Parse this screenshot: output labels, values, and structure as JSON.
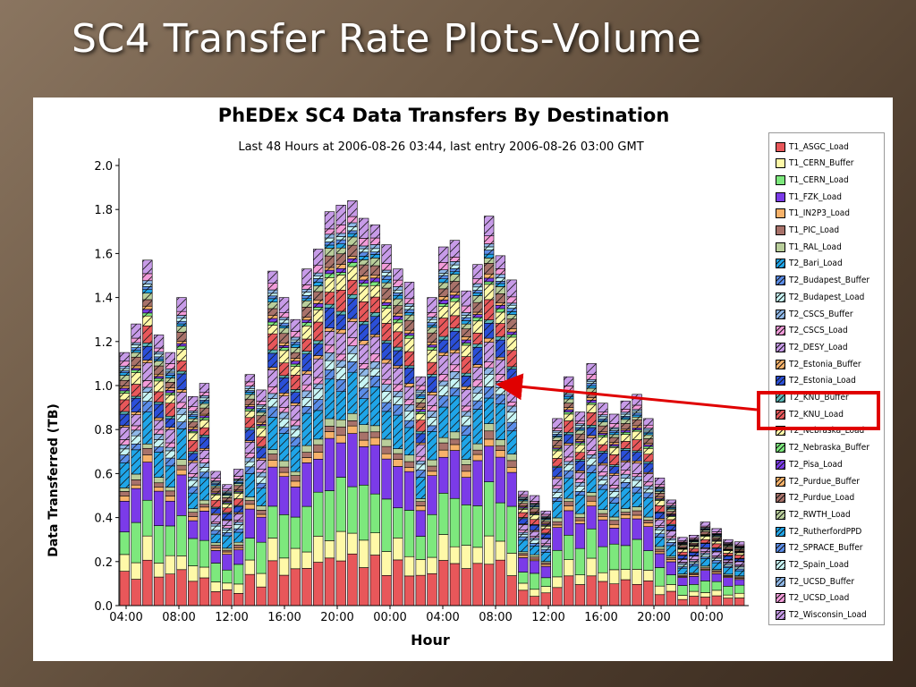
{
  "slide": {
    "title": "SC4 Transfer Rate Plots-Volume"
  },
  "chart_data": {
    "type": "bar",
    "stacked": true,
    "title": "PhEDEx SC4 Data Transfers By Destination",
    "subtitle": "Last 48 Hours at 2006-08-26 03:44, last entry 2006-08-26 03:00 GMT",
    "xlabel": "Hour",
    "ylabel": "Data Transferred (TB)",
    "ylim": [
      0,
      2.0
    ],
    "y_ticks": [
      "0.0",
      "0.2",
      "0.4",
      "0.6",
      "0.8",
      "1.0",
      "1.2",
      "1.4",
      "1.6",
      "1.8",
      "2.0"
    ],
    "x_tick_labels": [
      "04:00",
      "08:00",
      "12:00",
      "16:00",
      "20:00",
      "00:00",
      "04:00",
      "08:00",
      "12:00",
      "16:00",
      "20:00",
      "00:00"
    ],
    "grid": false,
    "legend_position": "right",
    "totals_TB": [
      1.15,
      1.28,
      1.57,
      1.23,
      1.15,
      1.4,
      0.95,
      1.01,
      0.61,
      0.55,
      0.62,
      1.05,
      0.98,
      1.52,
      1.4,
      1.3,
      1.53,
      1.62,
      1.79,
      1.82,
      1.84,
      1.76,
      1.73,
      1.64,
      1.53,
      1.47,
      1.04,
      1.4,
      1.63,
      1.66,
      1.43,
      1.55,
      1.77,
      1.59,
      1.48,
      0.52,
      0.5,
      0.43,
      0.85,
      1.04,
      0.88,
      1.1,
      0.92,
      0.87,
      0.93,
      0.96,
      0.85,
      0.58,
      0.48,
      0.31,
      0.32,
      0.38,
      0.35,
      0.3,
      0.29
    ],
    "highlighted_series": "T2_KNU_Load",
    "series": [
      {
        "name": "T1_ASGC_Load",
        "color": "#e8575a",
        "hatch": false
      },
      {
        "name": "T1_CERN_Buffer",
        "color": "#fff9a8",
        "hatch": false
      },
      {
        "name": "T1_CERN_Load",
        "color": "#7de87d",
        "hatch": false
      },
      {
        "name": "T1_FZK_Load",
        "color": "#7b3be8",
        "hatch": false
      },
      {
        "name": "T1_IN2P3_Load",
        "color": "#f7b26a",
        "hatch": false
      },
      {
        "name": "T1_PIC_Load",
        "color": "#a8726a",
        "hatch": false
      },
      {
        "name": "T1_RAL_Load",
        "color": "#b9ce9b",
        "hatch": false
      },
      {
        "name": "T2_Bari_Load",
        "color": "#1fa5e8",
        "hatch": true
      },
      {
        "name": "T2_Budapest_Buffer",
        "color": "#5b8de8",
        "hatch": true
      },
      {
        "name": "T2_Budapest_Load",
        "color": "#c8f5f5",
        "hatch": true
      },
      {
        "name": "T2_CSCS_Buffer",
        "color": "#8fb8e8",
        "hatch": true
      },
      {
        "name": "T2_CSCS_Load",
        "color": "#f29bd9",
        "hatch": true
      },
      {
        "name": "T2_DESY_Load",
        "color": "#c79be8",
        "hatch": true
      },
      {
        "name": "T2_Estonia_Buffer",
        "color": "#f7b26a",
        "hatch": true
      },
      {
        "name": "T2_Estonia_Load",
        "color": "#2b4fd8",
        "hatch": true
      },
      {
        "name": "T2_KNU_Buffer",
        "color": "#5bb8b8",
        "hatch": true
      },
      {
        "name": "T2_KNU_Load",
        "color": "#e8575a",
        "hatch": true
      },
      {
        "name": "T2_Nebraska_Load",
        "color": "#fff9a8",
        "hatch": true
      },
      {
        "name": "T2_Nebraska_Buffer",
        "color": "#7de87d",
        "hatch": true
      },
      {
        "name": "T2_Pisa_Load",
        "color": "#7b3be8",
        "hatch": true
      },
      {
        "name": "T2_Purdue_Buffer",
        "color": "#f7b26a",
        "hatch": true
      },
      {
        "name": "T2_Purdue_Load",
        "color": "#a8726a",
        "hatch": true
      },
      {
        "name": "T2_RWTH_Load",
        "color": "#b9ce9b",
        "hatch": true
      },
      {
        "name": "T2_RutherfordPPD",
        "color": "#1fa5e8",
        "hatch": true
      },
      {
        "name": "T2_SPRACE_Buffer",
        "color": "#5b8de8",
        "hatch": true
      },
      {
        "name": "T2_Spain_Load",
        "color": "#c8f5f5",
        "hatch": true
      },
      {
        "name": "T2_UCSD_Buffer",
        "color": "#8fb8e8",
        "hatch": true
      },
      {
        "name": "T2_UCSD_Load",
        "color": "#f29bd9",
        "hatch": true
      },
      {
        "name": "T2_Wisconsin_Load",
        "color": "#c79be8",
        "hatch": true
      }
    ]
  }
}
